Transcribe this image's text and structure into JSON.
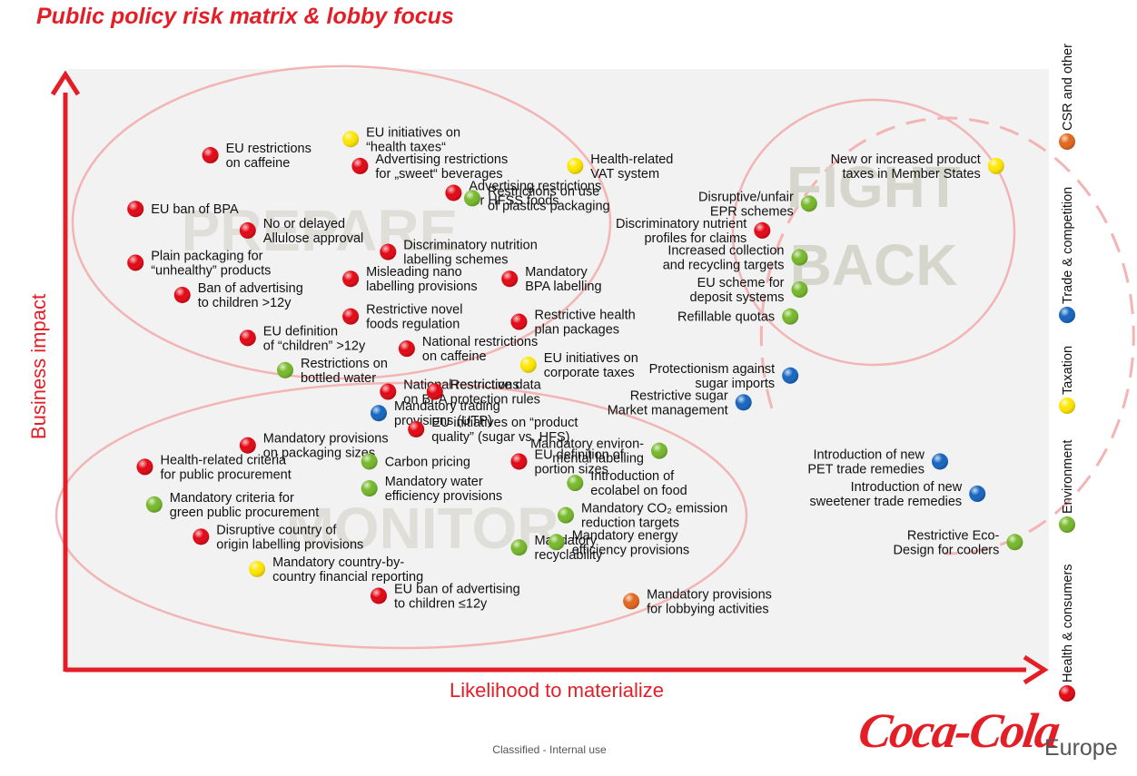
{
  "title": "Public policy risk matrix & lobby focus",
  "footer": "Classified - Internal use",
  "logo": {
    "script": "Coca-Cola",
    "region": "Europe"
  },
  "colors": {
    "health": "#e30613",
    "environment": "#76b82a",
    "taxation": "#ffe600",
    "trade": "#1565c0",
    "csr": "#e2661c",
    "accent": "#e41e26"
  },
  "chart_data": {
    "type": "scatter",
    "xlabel": "Likelihood to materialize",
    "ylabel": "Business impact",
    "zones": [
      "PREPARE",
      "FIGHT BACK",
      "MONITOR"
    ],
    "legend": {
      "placement": "right-vertical",
      "items": [
        {
          "key": "health",
          "label": "Health & consumers"
        },
        {
          "key": "environment",
          "label": "Environment"
        },
        {
          "key": "taxation",
          "label": "Taxation"
        },
        {
          "key": "trade",
          "label": "Trade & competition"
        },
        {
          "key": "csr",
          "label": "CSR and other"
        }
      ]
    },
    "points": [
      {
        "cat": "taxation",
        "x": 27,
        "y": 91,
        "label": [
          "EU initiatives on",
          "“health taxes“"
        ]
      },
      {
        "cat": "health",
        "x": 12,
        "y": 88,
        "label": [
          "EU restrictions",
          "on caffeine"
        ]
      },
      {
        "cat": "health",
        "x": 28,
        "y": 86,
        "label": [
          "Advertising restrictions",
          "for „sweet“ beverages"
        ]
      },
      {
        "cat": "taxation",
        "x": 51,
        "y": 86,
        "label": [
          "Health-related",
          "VAT system"
        ]
      },
      {
        "cat": "health",
        "x": 38,
        "y": 81,
        "label": [
          "Advertising restrictions",
          "for HFSS foods"
        ]
      },
      {
        "cat": "environment",
        "x": 40,
        "y": 80,
        "label": [
          "Restrictions on use",
          "of plastics packaging"
        ]
      },
      {
        "cat": "health",
        "x": 4,
        "y": 78,
        "label": [
          "EU ban of BPA"
        ]
      },
      {
        "cat": "health",
        "x": 16,
        "y": 74,
        "label": [
          "No or delayed",
          "Allulose approval"
        ]
      },
      {
        "cat": "health",
        "x": 31,
        "y": 70,
        "label": [
          "Discriminatory nutrition",
          "labelling schemes"
        ]
      },
      {
        "cat": "health",
        "x": 4,
        "y": 68,
        "label": [
          "Plain packaging for",
          "“unhealthy” products"
        ]
      },
      {
        "cat": "health",
        "x": 27,
        "y": 65,
        "label": [
          "Misleading nano",
          "labelling provisions"
        ]
      },
      {
        "cat": "health",
        "x": 44,
        "y": 65,
        "label": [
          "Mandatory",
          "BPA labelling"
        ]
      },
      {
        "cat": "health",
        "x": 9,
        "y": 62,
        "label": [
          "Ban of advertising",
          "to children >12y"
        ]
      },
      {
        "cat": "health",
        "x": 27,
        "y": 58,
        "label": [
          "Restrictive novel",
          "foods regulation"
        ]
      },
      {
        "cat": "health",
        "x": 45,
        "y": 57,
        "label": [
          "Restrictive health",
          "plan packages"
        ]
      },
      {
        "cat": "health",
        "x": 16,
        "y": 54,
        "label": [
          "EU definition",
          "of “children” >12y"
        ]
      },
      {
        "cat": "health",
        "x": 33,
        "y": 52,
        "label": [
          "National restrictions",
          "on caffeine"
        ]
      },
      {
        "cat": "taxation",
        "x": 46,
        "y": 49,
        "label": [
          "EU initiatives on",
          "corporate taxes"
        ]
      },
      {
        "cat": "environment",
        "x": 20,
        "y": 48,
        "label": [
          "Restrictions on",
          "bottled water"
        ]
      },
      {
        "cat": "health",
        "x": 31,
        "y": 44,
        "label": [
          "National restrictions",
          "on BPA"
        ]
      },
      {
        "cat": "health",
        "x": 36,
        "y": 44,
        "label": [
          "Restrictive data",
          "protection rules"
        ]
      },
      {
        "cat": "trade",
        "x": 30,
        "y": 40,
        "label": [
          "Mandatory trading",
          "provisions (UTP)"
        ]
      },
      {
        "cat": "health",
        "x": 34,
        "y": 37,
        "label": [
          "EU initiatives on “product",
          "quality” (sugar vs. HFS)"
        ]
      },
      {
        "cat": "health",
        "x": 16,
        "y": 34,
        "label": [
          "Mandatory provisions",
          "on packaging sizes"
        ]
      },
      {
        "cat": "health",
        "x": 5,
        "y": 30,
        "label": [
          "Health-related criteria",
          "for public procurement"
        ]
      },
      {
        "cat": "environment",
        "x": 29,
        "y": 31,
        "label": [
          "Carbon pricing"
        ]
      },
      {
        "cat": "health",
        "x": 45,
        "y": 31,
        "label": [
          "EU definition of",
          "portion sizes"
        ]
      },
      {
        "cat": "environment",
        "x": 60,
        "y": 33,
        "label": [
          "Mandatory environ-",
          "mental labelling"
        ]
      },
      {
        "cat": "environment",
        "x": 29,
        "y": 26,
        "label": [
          "Mandatory water",
          "efficiency provisions"
        ]
      },
      {
        "cat": "environment",
        "x": 51,
        "y": 27,
        "label": [
          "Introduction of",
          "ecolabel on food"
        ]
      },
      {
        "cat": "environment",
        "x": 6,
        "y": 23,
        "label": [
          "Mandatory criteria for",
          "green public procurement"
        ]
      },
      {
        "cat": "environment",
        "x": 50,
        "y": 21,
        "label": [
          "Mandatory CO₂ emission",
          "reduction targets"
        ]
      },
      {
        "cat": "health",
        "x": 11,
        "y": 17,
        "label": [
          "Disruptive country of",
          "origin labelling provisions"
        ]
      },
      {
        "cat": "environment",
        "x": 45,
        "y": 15,
        "label": [
          "Mandatory",
          "recyclability"
        ]
      },
      {
        "cat": "environment",
        "x": 49,
        "y": 16,
        "label": [
          "Mandatory energy",
          "efficiency provisions"
        ]
      },
      {
        "cat": "taxation",
        "x": 17,
        "y": 11,
        "label": [
          "Mandatory country-by-",
          "country financial reporting"
        ]
      },
      {
        "cat": "health",
        "x": 30,
        "y": 6,
        "label": [
          "EU ban of advertising",
          "to children ≤12y"
        ]
      },
      {
        "cat": "csr",
        "x": 57,
        "y": 5,
        "label": [
          "Mandatory provisions",
          "for lobbying activities"
        ]
      },
      {
        "cat": "taxation",
        "x": 96,
        "y": 86,
        "label": [
          "New or increased product",
          "taxes in Member States"
        ]
      },
      {
        "cat": "environment",
        "x": 76,
        "y": 79,
        "label": [
          "Disruptive/unfair",
          "EPR schemes"
        ]
      },
      {
        "cat": "health",
        "x": 71,
        "y": 74,
        "label": [
          "Discriminatory nutrient",
          "profiles for claims"
        ]
      },
      {
        "cat": "environment",
        "x": 75,
        "y": 69,
        "label": [
          "Increased collection",
          "and recycling targets"
        ]
      },
      {
        "cat": "environment",
        "x": 75,
        "y": 63,
        "label": [
          "EU scheme for",
          "deposit systems"
        ]
      },
      {
        "cat": "environment",
        "x": 74,
        "y": 58,
        "label": [
          "Refillable quotas"
        ]
      },
      {
        "cat": "trade",
        "x": 74,
        "y": 47,
        "label": [
          "Protectionism against",
          "sugar imports"
        ]
      },
      {
        "cat": "trade",
        "x": 69,
        "y": 42,
        "label": [
          "Restrictive sugar",
          "Market management"
        ]
      },
      {
        "cat": "trade",
        "x": 90,
        "y": 31,
        "label": [
          "Introduction of new",
          "PET trade remedies"
        ]
      },
      {
        "cat": "trade",
        "x": 94,
        "y": 25,
        "label": [
          "Introduction of new",
          "sweetener trade remedies"
        ]
      },
      {
        "cat": "environment",
        "x": 98,
        "y": 16,
        "label": [
          "Restrictive Eco-",
          "Design for coolers"
        ]
      }
    ]
  }
}
